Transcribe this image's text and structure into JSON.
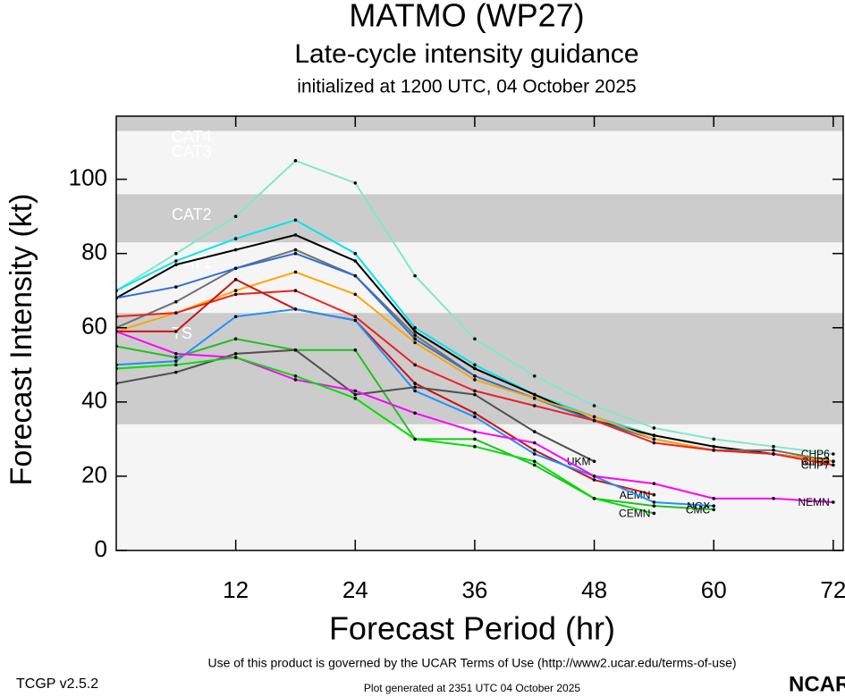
{
  "chart_data": {
    "type": "line",
    "title": "MATMO (WP27)",
    "subtitle": "Late-cycle intensity guidance",
    "init_text": "initialized at 1200 UTC, 04 October 2025",
    "y_label": "Forecast Intensity (kt)",
    "x_label": "Forecast Period (hr)",
    "xlim": [
      0,
      73
    ],
    "ylim": [
      0,
      117
    ],
    "xticks": [
      12,
      24,
      36,
      48,
      60,
      72
    ],
    "yticks": [
      0,
      20,
      40,
      60,
      80,
      100
    ],
    "bands": [
      {
        "label": "TS",
        "from": 34,
        "to": 64,
        "color": "#cccccc"
      },
      {
        "label": "CAT1",
        "from": 64,
        "to": 83,
        "color": "#f5f5f5"
      },
      {
        "label": "CAT2",
        "from": 83,
        "to": 96,
        "color": "#cccccc"
      },
      {
        "label": "CAT3",
        "from": 96,
        "to": 113,
        "color": "#f5f5f5"
      },
      {
        "label": "CAT4",
        "from": 113,
        "to": 117,
        "color": "#cccccc"
      }
    ],
    "x": [
      0,
      6,
      12,
      18,
      24,
      30,
      36,
      42,
      48,
      54,
      60,
      66,
      72
    ],
    "series": [
      {
        "name": "CHP6",
        "color": "#80e8c8",
        "values": [
          70,
          80,
          90,
          105,
          99,
          74,
          57,
          47,
          39,
          33,
          30,
          28,
          26
        ]
      },
      {
        "name": "CHP2",
        "color": "#00e5ee",
        "values": [
          70,
          78,
          84,
          89,
          80,
          60,
          50,
          42,
          36,
          31,
          28,
          26,
          24
        ]
      },
      {
        "name": "CHP4",
        "color": "#000000",
        "values": [
          68,
          77,
          81,
          85,
          78,
          59,
          49,
          42,
          35,
          31,
          28,
          26,
          24
        ]
      },
      {
        "name": "CHP5",
        "color": "#707070",
        "values": [
          60,
          67,
          76,
          81,
          74,
          58,
          47,
          41,
          35,
          30,
          27,
          27,
          24
        ]
      },
      {
        "name": "CHIP",
        "color": "#2f6fd6",
        "values": [
          68,
          71,
          76,
          80,
          74,
          57,
          47,
          41,
          35,
          30,
          27,
          26,
          24
        ]
      },
      {
        "name": "CHP3",
        "color": "#ffa500",
        "values": [
          59,
          64,
          70,
          75,
          69,
          56,
          46,
          41,
          36,
          30,
          27,
          26,
          24
        ]
      },
      {
        "name": "CHP7",
        "color": "#ee2020",
        "values": [
          63,
          64,
          69,
          70,
          63,
          50,
          43,
          39,
          35,
          29,
          27,
          26,
          23
        ]
      },
      {
        "name": "AEMN",
        "color": "#d01010",
        "values": [
          59,
          59,
          73,
          65,
          62,
          45,
          37,
          27,
          19,
          15,
          null,
          null,
          null
        ]
      },
      {
        "name": "NGX",
        "color": "#1e90ff",
        "values": [
          50,
          51,
          63,
          65,
          62,
          43,
          36,
          26,
          20,
          13,
          12,
          null,
          null
        ]
      },
      {
        "name": "CMC",
        "color": "#20c020",
        "values": [
          55,
          52,
          57,
          54,
          54,
          30,
          30,
          23,
          14,
          12,
          11,
          null,
          null
        ]
      },
      {
        "name": "UKM",
        "color": "#505050",
        "values": [
          45,
          48,
          53,
          54,
          42,
          44,
          42,
          32,
          24,
          null,
          null,
          null,
          null
        ]
      },
      {
        "name": "NEMN",
        "color": "#ff00ff",
        "values": [
          59,
          53,
          52,
          46,
          43,
          37,
          32,
          29,
          20,
          18,
          14,
          14,
          13
        ]
      },
      {
        "name": "CEMN",
        "color": "#00e000",
        "values": [
          49,
          50,
          52,
          47,
          41,
          30,
          28,
          24,
          14,
          10,
          null,
          null,
          null
        ]
      }
    ],
    "terms": "Use of this product is governed by the UCAR Terms of Use (http://www2.ucar.edu/terms-of-use)",
    "version": "TCGP v2.5.2",
    "generated": "Plot generated at 2351 UTC   04 October 2025",
    "logo": "NCAR"
  }
}
